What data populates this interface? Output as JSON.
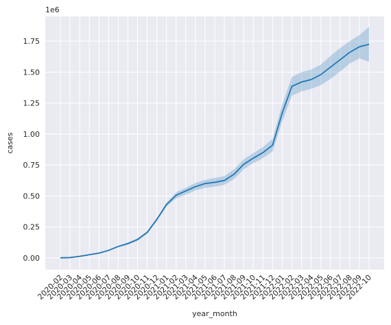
{
  "chart_data": {
    "type": "line",
    "title": "",
    "xlabel": "year_month",
    "ylabel": "cases",
    "y_scale_label": "1e6",
    "ylim": [
      -95000,
      1950000
    ],
    "yticks": [
      0,
      250000,
      500000,
      750000,
      1000000,
      1250000,
      1500000,
      1750000
    ],
    "ytick_labels": [
      "0.00",
      "0.25",
      "0.50",
      "0.75",
      "1.00",
      "1.25",
      "1.50",
      "1.75"
    ],
    "grid": true,
    "confidence_band": true,
    "colors": {
      "line": "#1f77b4",
      "band": "#1f77b4",
      "background": "#eaeaf2",
      "grid": "#ffffff"
    },
    "x": [
      "2020-02",
      "2020-03",
      "2020-04",
      "2020-05",
      "2020-06",
      "2020-07",
      "2020-08",
      "2020-09",
      "2020-10",
      "2020-11",
      "2020-12",
      "2021-01",
      "2021-02",
      "2021-03",
      "2021-04",
      "2021-05",
      "2021-06",
      "2021-07",
      "2021-08",
      "2021-09",
      "2021-10",
      "2021-11",
      "2021-12",
      "2022-01",
      "2022-02",
      "2022-03",
      "2022-04",
      "2022-05",
      "2022-06",
      "2022-07",
      "2022-08",
      "2022-09",
      "2022-10"
    ],
    "series": [
      {
        "values": [
          0,
          2000,
          12000,
          25000,
          38000,
          60000,
          92000,
          115000,
          148000,
          205000,
          310000,
          430000,
          505000,
          540000,
          575000,
          600000,
          610000,
          625000,
          675000,
          755000,
          805000,
          850000,
          910000,
          1170000,
          1385000,
          1420000,
          1440000,
          1480000,
          1540000,
          1600000,
          1660000,
          1705000,
          1725000
        ],
        "lower": [
          0,
          1500,
          10000,
          22000,
          34000,
          55000,
          86000,
          107000,
          138000,
          195000,
          298000,
          415000,
          480000,
          510000,
          545000,
          565000,
          575000,
          590000,
          635000,
          715000,
          765000,
          805000,
          860000,
          1100000,
          1310000,
          1345000,
          1365000,
          1395000,
          1445000,
          1505000,
          1570000,
          1610000,
          1585000
        ],
        "upper": [
          0,
          2500,
          14000,
          28000,
          42000,
          65000,
          98000,
          123000,
          158000,
          215000,
          322000,
          445000,
          530000,
          565000,
          605000,
          630000,
          645000,
          660000,
          715000,
          795000,
          845000,
          895000,
          960000,
          1240000,
          1460000,
          1500000,
          1520000,
          1560000,
          1630000,
          1695000,
          1750000,
          1800000,
          1865000
        ]
      }
    ]
  }
}
